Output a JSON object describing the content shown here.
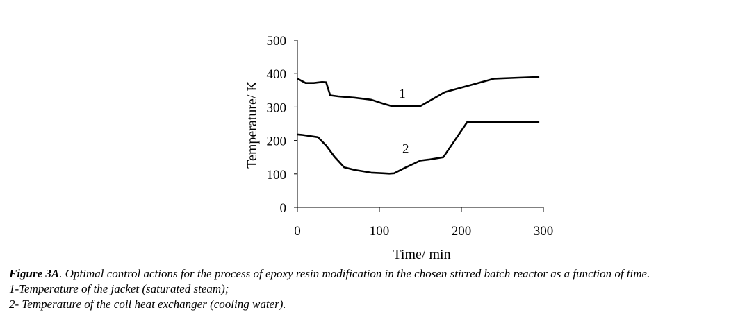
{
  "chart_data": {
    "type": "line",
    "title": "",
    "xlabel": "Time/ min",
    "ylabel": "Temperature/ K",
    "xlim": [
      0,
      300
    ],
    "ylim": [
      0,
      500
    ],
    "xticks": [
      0,
      100,
      200,
      300
    ],
    "yticks": [
      0,
      100,
      200,
      300,
      400,
      500
    ],
    "grid": false,
    "series": [
      {
        "name": "1",
        "x": [
          0,
          10,
          20,
          30,
          35,
          40,
          50,
          70,
          90,
          105,
          115,
          130,
          150,
          180,
          210,
          240,
          270,
          295
        ],
        "values": [
          385,
          372,
          372,
          375,
          374,
          335,
          332,
          328,
          322,
          310,
          303,
          303,
          303,
          345,
          365,
          385,
          388,
          390
        ]
      },
      {
        "name": "2",
        "x": [
          0,
          5,
          25,
          35,
          45,
          57,
          70,
          90,
          105,
          112,
          118,
          130,
          150,
          160,
          178,
          207,
          230,
          260,
          295
        ],
        "values": [
          218,
          217,
          210,
          185,
          152,
          120,
          112,
          104,
          102,
          101,
          102,
          117,
          140,
          143,
          150,
          255,
          255,
          255,
          255
        ]
      }
    ]
  },
  "caption": {
    "figure_label": "Figure 3A",
    "title_text": ". Optimal control actions for the process of epoxy resin modification in the chosen stirred batch reactor as a function of time.",
    "line1": "1-Temperature of the jacket (saturated steam);",
    "line2": "2- Temperature of the coil heat exchanger (cooling water)."
  }
}
